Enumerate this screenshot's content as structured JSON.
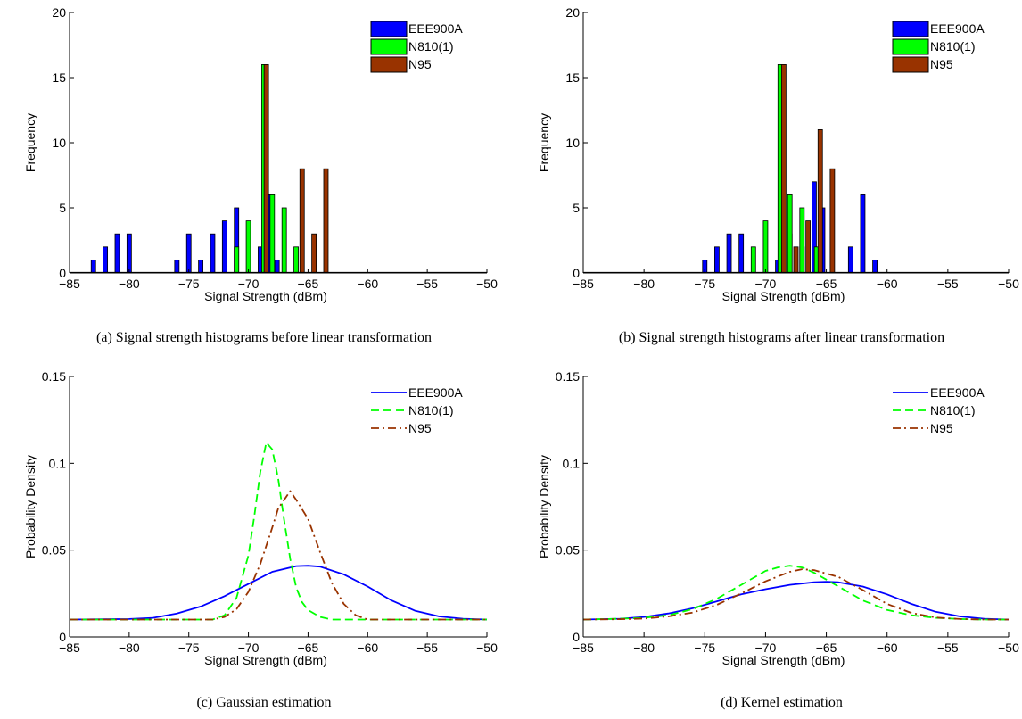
{
  "chart_data": [
    {
      "type": "bar",
      "caption": "(a) Signal strength histograms before linear transformation",
      "xlabel": "Signal Strength (dBm)",
      "ylabel": "Frequency",
      "xlim": [
        -85,
        -50
      ],
      "ylim": [
        0,
        20
      ],
      "xticks": [
        -85,
        -80,
        -75,
        -70,
        -65,
        -60,
        -55,
        -50
      ],
      "yticks": [
        0,
        5,
        10,
        15,
        20
      ],
      "legend_position": "top-right",
      "series": [
        {
          "name": "EEE900A",
          "color": "#0000ff",
          "x": [
            -83,
            -82,
            -81,
            -80,
            -76,
            -75,
            -74,
            -73,
            -72,
            -71,
            -69,
            -68.2,
            -67.6
          ],
          "values": [
            1,
            2,
            3,
            3,
            1,
            3,
            1,
            3,
            4,
            5,
            2,
            6,
            1
          ]
        },
        {
          "name": "N810(1)",
          "color": "#00ff00",
          "x": [
            -71,
            -70,
            -68.7,
            -68,
            -67,
            -66
          ],
          "values": [
            2,
            4,
            16,
            6,
            5,
            2
          ]
        },
        {
          "name": "N95",
          "color": "#993300",
          "x": [
            -68.5,
            -65.5,
            -64.5,
            -63.5
          ],
          "values": [
            16,
            8,
            3,
            8
          ]
        }
      ]
    },
    {
      "type": "bar",
      "caption": "(b) Signal strength histograms after linear transformation",
      "xlabel": "Signal Strength (dBm)",
      "ylabel": "Frequency",
      "xlim": [
        -85,
        -50
      ],
      "ylim": [
        0,
        20
      ],
      "xticks": [
        -85,
        -80,
        -75,
        -70,
        -65,
        -60,
        -55,
        -50
      ],
      "yticks": [
        0,
        5,
        10,
        15,
        20
      ],
      "legend_position": "top-right",
      "series": [
        {
          "name": "EEE900A",
          "color": "#0000ff",
          "x": [
            -75,
            -74,
            -73,
            -72,
            -69,
            -68,
            -67,
            -66,
            -65.3,
            -63,
            -62,
            -61
          ],
          "values": [
            1,
            2,
            3,
            3,
            1,
            3,
            2,
            7,
            5,
            2,
            6,
            1
          ]
        },
        {
          "name": "N810(1)",
          "color": "#00ff00",
          "x": [
            -71,
            -70,
            -68.8,
            -68,
            -67,
            -65.8
          ],
          "values": [
            2,
            4,
            16,
            6,
            5,
            2
          ]
        },
        {
          "name": "N95",
          "color": "#993300",
          "x": [
            -68.5,
            -67.5,
            -66.5,
            -65.5,
            -64.5
          ],
          "values": [
            16,
            2,
            4,
            11,
            8
          ]
        }
      ]
    },
    {
      "type": "line",
      "caption": "(c) Gaussian estimation",
      "xlabel": "Signal Strength (dBm)",
      "ylabel": "Probability Density",
      "xlim": [
        -85,
        -50
      ],
      "ylim": [
        0,
        0.15
      ],
      "xticks": [
        -85,
        -80,
        -75,
        -70,
        -65,
        -60,
        -55,
        -50
      ],
      "yticks": [
        0,
        0.05,
        0.1,
        0.15
      ],
      "ytick_labels": [
        "0",
        "0.05",
        "0.1",
        "0.15"
      ],
      "legend_position": "top-right",
      "series": [
        {
          "name": "EEE900A",
          "color": "#0000ff",
          "dash": "solid",
          "x": [
            -85,
            -80,
            -78,
            -76,
            -74,
            -72,
            -70,
            -68,
            -66,
            -65,
            -64,
            -62,
            -60,
            -58,
            -56,
            -54,
            -52,
            -50
          ],
          "values": [
            0.01,
            0.0103,
            0.011,
            0.0135,
            0.0175,
            0.0235,
            0.0305,
            0.0375,
            0.0408,
            0.041,
            0.0405,
            0.036,
            0.029,
            0.021,
            0.015,
            0.0118,
            0.0105,
            0.01
          ]
        },
        {
          "name": "N810(1)",
          "color": "#00ff00",
          "dash": "dashed",
          "x": [
            -85,
            -73,
            -72,
            -71,
            -70,
            -69.5,
            -69,
            -68.5,
            -68,
            -67.5,
            -67,
            -66.5,
            -66,
            -65.5,
            -65,
            -64,
            -63,
            -50
          ],
          "values": [
            0.01,
            0.01,
            0.0125,
            0.0225,
            0.047,
            0.07,
            0.095,
            0.112,
            0.108,
            0.091,
            0.067,
            0.045,
            0.0285,
            0.02,
            0.0155,
            0.0115,
            0.01,
            0.01
          ]
        },
        {
          "name": "N95",
          "color": "#993300",
          "dash": "dashdot",
          "x": [
            -85,
            -73,
            -72,
            -71,
            -70,
            -69,
            -68,
            -67.5,
            -67,
            -66.5,
            -66,
            -65,
            -64,
            -63,
            -62,
            -61,
            -60,
            -50
          ],
          "values": [
            0.01,
            0.01,
            0.0115,
            0.016,
            0.026,
            0.042,
            0.063,
            0.074,
            0.079,
            0.084,
            0.079,
            0.068,
            0.049,
            0.031,
            0.019,
            0.0125,
            0.01,
            0.01
          ]
        }
      ]
    },
    {
      "type": "line",
      "caption": "(d) Kernel estimation",
      "xlabel": "Signal Strength (dBm)",
      "ylabel": "Probability Density",
      "xlim": [
        -85,
        -50
      ],
      "ylim": [
        0,
        0.15
      ],
      "xticks": [
        -85,
        -80,
        -75,
        -70,
        -65,
        -60,
        -55,
        -50
      ],
      "yticks": [
        0,
        0.05,
        0.1,
        0.15
      ],
      "ytick_labels": [
        "0",
        "0.05",
        "0.1",
        "0.15"
      ],
      "legend_position": "top-right",
      "series": [
        {
          "name": "EEE900A",
          "color": "#0000ff",
          "dash": "solid",
          "x": [
            -85,
            -82,
            -80,
            -78,
            -76,
            -74,
            -72,
            -70,
            -68,
            -66,
            -65,
            -64,
            -62,
            -60,
            -58,
            -56,
            -54,
            -52,
            -50
          ],
          "values": [
            0.01,
            0.0105,
            0.0115,
            0.0135,
            0.0165,
            0.0205,
            0.0245,
            0.0275,
            0.03,
            0.0315,
            0.0318,
            0.0315,
            0.029,
            0.0245,
            0.019,
            0.0145,
            0.0118,
            0.0105,
            0.01
          ]
        },
        {
          "name": "N810(1)",
          "color": "#00ff00",
          "dash": "dashed",
          "x": [
            -85,
            -82,
            -80,
            -78,
            -76,
            -74,
            -72,
            -70,
            -69,
            -68,
            -67,
            -66,
            -64,
            -62,
            -60,
            -58,
            -56,
            -54,
            -52,
            -50
          ],
          "values": [
            0.01,
            0.0105,
            0.011,
            0.0125,
            0.016,
            0.022,
            0.03,
            0.038,
            0.04,
            0.041,
            0.04,
            0.037,
            0.029,
            0.021,
            0.0155,
            0.0125,
            0.011,
            0.0103,
            0.01,
            0.01
          ]
        },
        {
          "name": "N95",
          "color": "#993300",
          "dash": "dashdot",
          "x": [
            -85,
            -82,
            -80,
            -78,
            -76,
            -74,
            -72,
            -70,
            -68,
            -67,
            -66,
            -64,
            -62,
            -60,
            -58,
            -56,
            -54,
            -52,
            -50
          ],
          "values": [
            0.01,
            0.0102,
            0.0106,
            0.0118,
            0.014,
            0.0185,
            0.025,
            0.032,
            0.0375,
            0.039,
            0.0385,
            0.0345,
            0.027,
            0.019,
            0.0138,
            0.0112,
            0.0103,
            0.01,
            0.01
          ]
        }
      ]
    }
  ]
}
